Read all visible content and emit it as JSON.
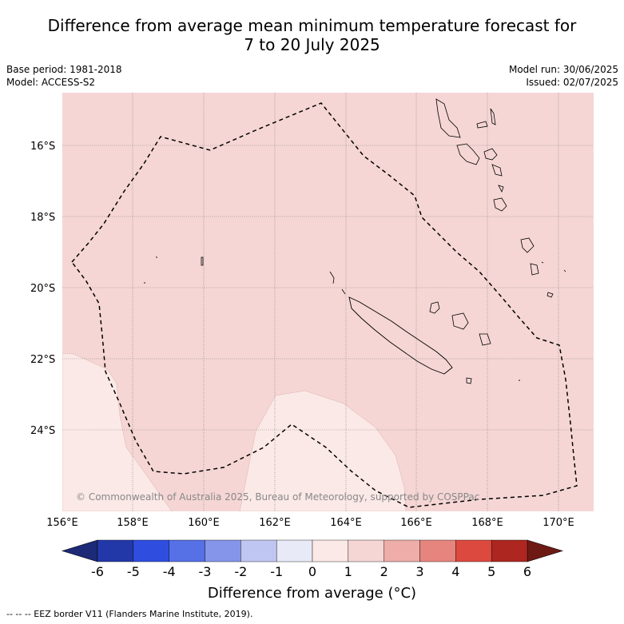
{
  "title": {
    "line1": "Difference from average mean minimum temperature forecast for",
    "line2": "7 to 20 July 2025"
  },
  "info_left": {
    "base_period": "Base period: 1981-2018",
    "model": "Model: ACCESS-S2"
  },
  "info_right": {
    "model_run": "Model run: 30/06/2025",
    "issued": "Issued: 02/07/2025"
  },
  "map": {
    "lon_range": [
      156.0,
      171.0
    ],
    "lat_range": [
      -26.0,
      -14.5
    ],
    "lat_ticks": [
      "16°S",
      "18°S",
      "20°S",
      "22°S",
      "24°S"
    ],
    "lon_ticks": [
      "156°E",
      "158°E",
      "160°E",
      "162°E",
      "164°E",
      "166°E",
      "168°E",
      "170°E"
    ],
    "gridlines": true,
    "background_color": "#f5d6d4",
    "anomaly_0_1_color": "#fbe9e7",
    "copyright": "© Commonwealth of Australia 2025, Bureau of Meteorology, supported by COSPPac"
  },
  "colorbar": {
    "ticks": [
      "-6",
      "-5",
      "-4",
      "-3",
      "-2",
      "-1",
      "0",
      "1",
      "2",
      "3",
      "4",
      "5",
      "6"
    ],
    "colors": [
      "#2338a8",
      "#2f4ee0",
      "#5670e6",
      "#8495ea",
      "#c0c6f2",
      "#e8eaf8",
      "#fbe9e7",
      "#f5d6d4",
      "#eeada8",
      "#e6857e",
      "#dc4a3f",
      "#ad2620"
    ],
    "low_extend_color": "#1c2a78",
    "high_extend_color": "#6e1a14",
    "label": "Difference from average (°C)"
  },
  "footnote": "--  --  -- EEZ border V11 (Flanders Marine Institute, 2019)."
}
